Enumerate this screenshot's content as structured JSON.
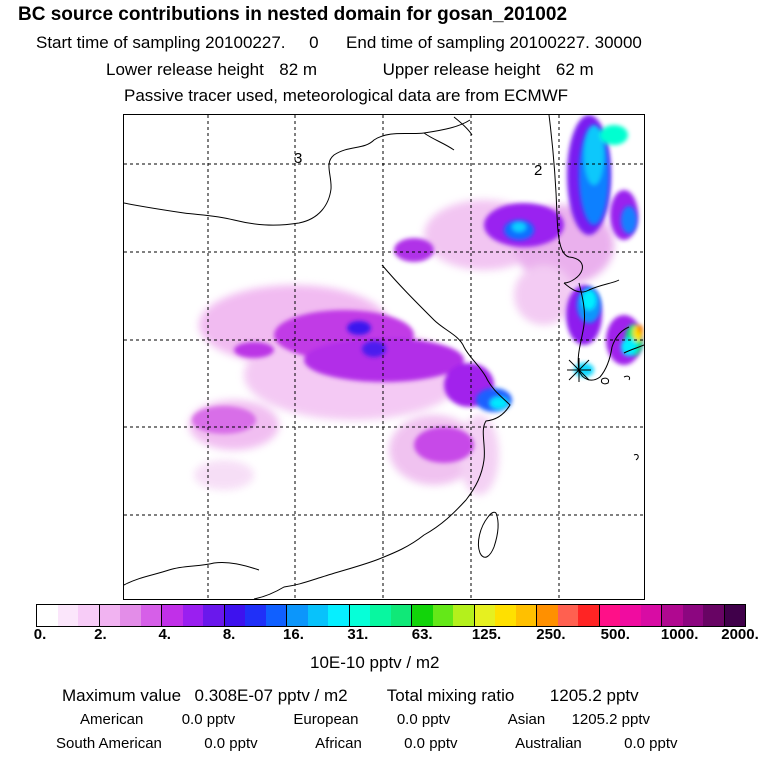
{
  "header": {
    "title": "BC  source contributions in nested domain for gosan_201002",
    "start_label": "Start time of sampling",
    "start_value": "20100227.     0",
    "end_label": "End time of sampling",
    "end_value": "20100227. 30000",
    "lower_label": "Lower release height",
    "lower_value": "82 m",
    "upper_label": "Upper release height",
    "upper_value": "62 m",
    "note": "Passive tracer used, meteorological data are from ECMWF"
  },
  "map": {
    "grid_labels": [
      "3",
      "2"
    ]
  },
  "colorbar": {
    "colors": [
      "#ffffff",
      "#fbe6fb",
      "#f7ccf7",
      "#f1b3f1",
      "#e38de8",
      "#d65fe8",
      "#c130e8",
      "#9a1ff0",
      "#6a18ec",
      "#3e12ee",
      "#2030f8",
      "#1060ff",
      "#0c96fb",
      "#08c2fb",
      "#06efff",
      "#06ffd8",
      "#08f7a0",
      "#10e878",
      "#12d40a",
      "#64e818",
      "#b4f01c",
      "#e6f020",
      "#ffe000",
      "#ffc000",
      "#ff9000",
      "#ff6050",
      "#ff2424",
      "#ff1088",
      "#f00ca0",
      "#d80ca4",
      "#b00890",
      "#8c0680",
      "#680464",
      "#40004a"
    ],
    "labels": [
      "0.",
      "2.",
      "4.",
      "8.",
      "16.",
      "31.",
      "63.",
      "125.",
      "250.",
      "500.",
      "1000.",
      "2000."
    ],
    "units": "10E-10 pptv / m2"
  },
  "summary": {
    "max_label": "Maximum value",
    "max_value": "0.308E-07 pptv / m2",
    "total_label": "Total mixing ratio",
    "total_value": "1205.2 pptv",
    "sources": [
      {
        "name": "American",
        "value": "0.0 pptv"
      },
      {
        "name": "European",
        "value": "0.0 pptv"
      },
      {
        "name": "Asian",
        "value": "1205.2 pptv"
      },
      {
        "name": "South American",
        "value": "0.0 pptv"
      },
      {
        "name": "African",
        "value": "0.0 pptv"
      },
      {
        "name": "Australian",
        "value": "0.0 pptv"
      }
    ]
  }
}
